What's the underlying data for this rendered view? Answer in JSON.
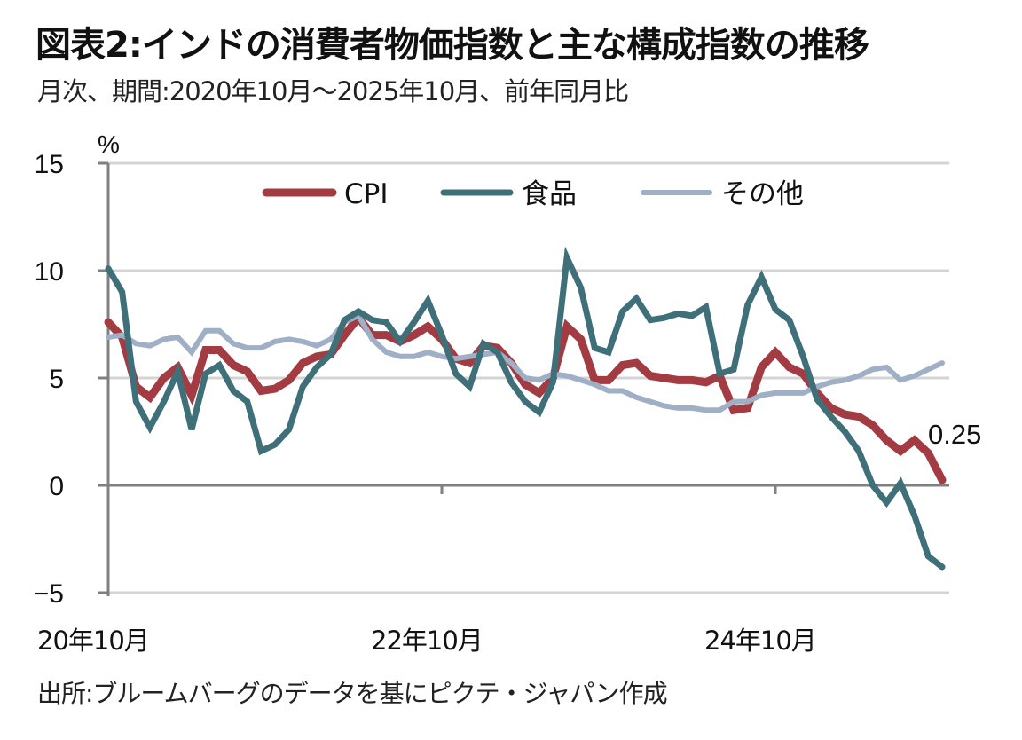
{
  "header": {
    "title": "図表2:インドの消費者物価指数と主な構成指数の推移",
    "subtitle": "月次、期間:2020年10月～2025年10月、前年同月比"
  },
  "footer": {
    "source": "出所:ブルームバーグのデータを基にピクテ・ジャパン作成"
  },
  "chart_data": {
    "type": "line",
    "title": "図表2:インドの消費者物価指数と主な構成指数の推移",
    "subtitle": "月次、期間:2020年10月～2025年10月、前年同月比",
    "xlabel": "",
    "ylabel": "%",
    "ylim": [
      -5,
      15
    ],
    "yticks": [
      15,
      10,
      5,
      0,
      -5
    ],
    "ytick_labels": [
      "15",
      "10",
      "5",
      "0",
      "−5"
    ],
    "x_start": "2020-10",
    "x_end": "2025-10",
    "x_count": 61,
    "xticks": [
      {
        "index": 0,
        "label": "20年10月"
      },
      {
        "index": 24,
        "label": "22年10月"
      },
      {
        "index": 48,
        "label": "24年10月"
      }
    ],
    "grid": true,
    "legend_position": "top-center",
    "annotations": [
      {
        "series": "CPI",
        "index": 60,
        "text": "0.25"
      }
    ],
    "series": [
      {
        "name": "CPI",
        "color": "#a33b43",
        "values": [
          7.6,
          6.9,
          4.6,
          4.1,
          5.0,
          5.5,
          4.2,
          6.3,
          6.3,
          5.6,
          5.3,
          4.4,
          4.5,
          4.9,
          5.7,
          6.0,
          6.1,
          7.0,
          7.8,
          7.0,
          7.0,
          6.7,
          7.0,
          7.4,
          6.8,
          5.9,
          5.7,
          6.5,
          6.4,
          5.7,
          4.7,
          4.3,
          5.0,
          7.4,
          6.8,
          4.9,
          4.9,
          5.6,
          5.7,
          5.1,
          5.0,
          4.9,
          4.9,
          4.8,
          5.1,
          3.5,
          3.6,
          5.5,
          6.2,
          5.5,
          5.2,
          4.3,
          3.6,
          3.3,
          3.2,
          2.8,
          2.1,
          1.6,
          2.1,
          1.5,
          0.25
        ]
      },
      {
        "name": "食品",
        "color": "#3f7079",
        "values": [
          10.1,
          9.0,
          3.9,
          2.7,
          3.9,
          5.3,
          2.6,
          5.2,
          5.6,
          4.4,
          3.9,
          1.6,
          1.9,
          2.6,
          4.6,
          5.5,
          6.1,
          7.7,
          8.1,
          7.7,
          7.6,
          6.7,
          7.6,
          8.6,
          7.0,
          5.2,
          4.6,
          6.6,
          6.2,
          4.8,
          3.9,
          3.4,
          4.8,
          10.6,
          9.2,
          6.4,
          6.2,
          8.1,
          8.7,
          7.7,
          7.8,
          8.0,
          7.9,
          8.3,
          5.2,
          5.4,
          8.4,
          9.7,
          8.2,
          7.7,
          6.0,
          4.0,
          3.2,
          2.5,
          1.6,
          0.0,
          -0.8,
          0.1,
          -1.4,
          -3.3,
          -3.8
        ]
      },
      {
        "name": "その他",
        "color": "#9fb0c6",
        "values": [
          6.9,
          7.0,
          6.6,
          6.5,
          6.8,
          6.9,
          6.2,
          7.2,
          7.2,
          6.6,
          6.4,
          6.4,
          6.7,
          6.8,
          6.7,
          6.5,
          6.8,
          7.6,
          7.9,
          6.8,
          6.2,
          6.0,
          6.0,
          6.2,
          6.0,
          5.9,
          6.0,
          6.1,
          6.2,
          5.7,
          5.0,
          4.9,
          5.2,
          5.1,
          4.9,
          4.7,
          4.4,
          4.4,
          4.1,
          3.9,
          3.7,
          3.6,
          3.6,
          3.5,
          3.5,
          3.9,
          3.9,
          4.2,
          4.3,
          4.3,
          4.3,
          4.6,
          4.8,
          4.9,
          5.1,
          5.4,
          5.5,
          4.9,
          5.1,
          5.4,
          5.7
        ]
      }
    ]
  }
}
